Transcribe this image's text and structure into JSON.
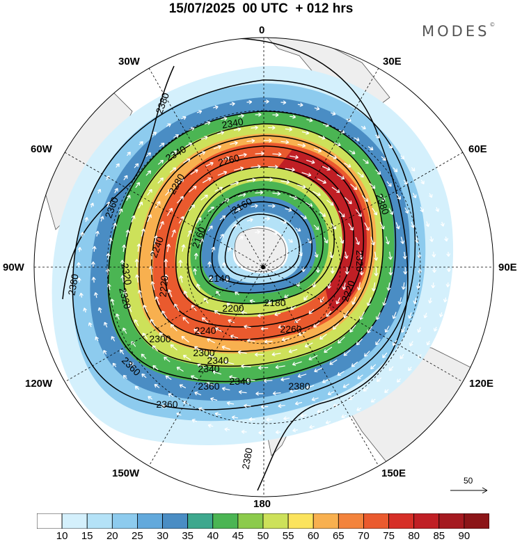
{
  "header": {
    "title": "15/07/2025  00 UTC  + 012 hrs",
    "brand": "MODES",
    "brand_mark": "©"
  },
  "map": {
    "projection": "polar-stereographic-south",
    "longitude_labels": {
      "lon_0": "0",
      "lon_30e": "30E",
      "lon_60e": "60E",
      "lon_90e": "90E",
      "lon_120e": "120E",
      "lon_150e": "150E",
      "lon_180": "180",
      "lon_150w": "150W",
      "lon_120w": "120W",
      "lon_90w": "90W",
      "lon_60w": "60W",
      "lon_30w": "30W"
    },
    "contour_labels": [
      "2380",
      "2380",
      "2380",
      "2380",
      "2380",
      "2360",
      "2360",
      "2360",
      "2360",
      "2340",
      "2340",
      "2340",
      "2340",
      "2340",
      "2320",
      "2320",
      "2320",
      "2300",
      "2300",
      "2280",
      "2260",
      "2260",
      "2240",
      "2240",
      "2220",
      "2220",
      "2200",
      "2180",
      "2160",
      "2160",
      "2140"
    ],
    "vector_reference": {
      "label": "50"
    },
    "colors": {
      "land": "#eeeeee",
      "coast": "#555555",
      "contour": "#000000",
      "vector": "#ffffff",
      "grid": "#000000"
    }
  },
  "colorbar": {
    "ticks": [
      "10",
      "15",
      "20",
      "25",
      "30",
      "35",
      "40",
      "45",
      "50",
      "55",
      "60",
      "65",
      "70",
      "75",
      "80",
      "85",
      "90"
    ],
    "colors": [
      "#ffffff",
      "#d4f0fc",
      "#b4e2f7",
      "#8dcbee",
      "#62a9dc",
      "#4a8dc4",
      "#3ea88e",
      "#4bb553",
      "#8ccb4c",
      "#cde15a",
      "#fbe35c",
      "#f8b04f",
      "#f3833c",
      "#ea5a2e",
      "#d62f27",
      "#c01f25",
      "#a51a20",
      "#8c1518"
    ]
  }
}
